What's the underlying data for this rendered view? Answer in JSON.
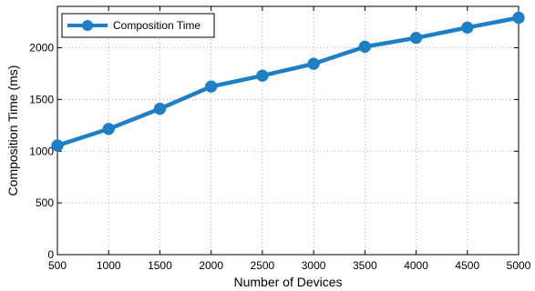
{
  "chart_data": {
    "type": "line",
    "title": "",
    "xlabel": "Number of Devices",
    "ylabel": "Composition Time (ms)",
    "x": [
      500,
      1000,
      1500,
      2000,
      2500,
      3000,
      3500,
      4000,
      4500,
      5000
    ],
    "series": [
      {
        "name": "Composition Time",
        "values": [
          1055,
          1215,
          1410,
          1625,
          1730,
          1845,
          2010,
          2095,
          2195,
          2290
        ],
        "color": "#1f7fc4",
        "marker": "circle"
      }
    ],
    "xlim": [
      500,
      5000
    ],
    "ylim": [
      0,
      2400
    ],
    "x_ticks": [
      "500",
      "1000",
      "1500",
      "2000",
      "2500",
      "3000",
      "3500",
      "4000",
      "4500",
      "5000"
    ],
    "y_ticks": [
      "0",
      "500",
      "1000",
      "1500",
      "2000"
    ],
    "grid": true,
    "legend_position": "top-left"
  }
}
